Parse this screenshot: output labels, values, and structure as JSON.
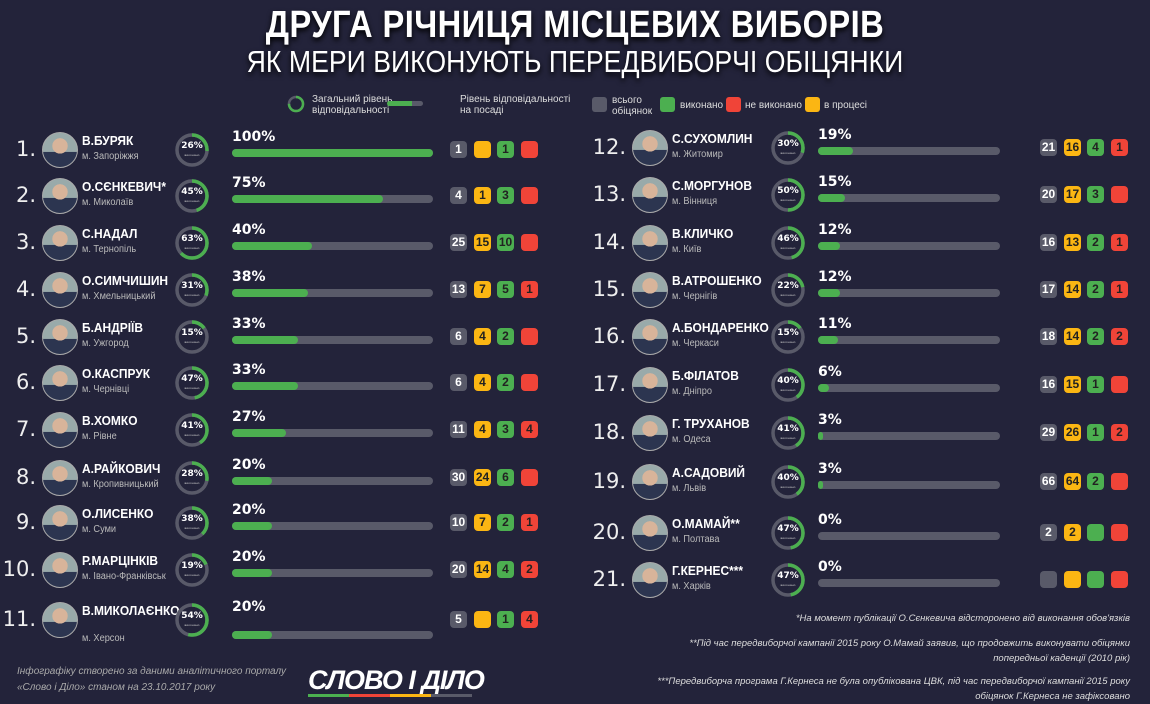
{
  "title": "ДРУГА РІЧНИЦЯ МІСЦЕВИХ ВИБОРІВ",
  "subtitle": "ЯК МЕРИ ВИКОНУЮТЬ  ПЕРЕДВИБОРЧІ ОБІЦЯНКИ",
  "legend": {
    "overall": "Загальний рівень відповідальності",
    "position": "Рівень відповідальності на посаді",
    "total": "всього обіцянок",
    "done": "виконано",
    "not_done": "не виконано",
    "in_progress": "в процесі"
  },
  "colors": {
    "background": "#23233a",
    "total": "#595a69",
    "done": "#4caf50",
    "not_done": "#f04438",
    "in_progress": "#fbb613"
  },
  "ring_caption": "виконано",
  "mayors": [
    {
      "rank": "1.",
      "name": "В.БУРЯК",
      "city": "м. Запоріжжя",
      "overall": "26%",
      "position": "100%",
      "total": "1",
      "in_progress": "",
      "done": "1",
      "not_done": ""
    },
    {
      "rank": "2.",
      "name": "О.СЄНКЕВИЧ*",
      "city": "м. Миколаїв",
      "overall": "45%",
      "position": "75%",
      "total": "4",
      "in_progress": "1",
      "done": "3",
      "not_done": ""
    },
    {
      "rank": "3.",
      "name": "С.НАДАЛ",
      "city": "м. Тернопіль",
      "overall": "63%",
      "position": "40%",
      "total": "25",
      "in_progress": "15",
      "done": "10",
      "not_done": ""
    },
    {
      "rank": "4.",
      "name": "О.СИМЧИШИН",
      "city": "м. Хмельницький",
      "overall": "31%",
      "position": "38%",
      "total": "13",
      "in_progress": "7",
      "done": "5",
      "not_done": "1"
    },
    {
      "rank": "5.",
      "name": "Б.АНДРІЇВ",
      "city": "м. Ужгород",
      "overall": "15%",
      "position": "33%",
      "total": "6",
      "in_progress": "4",
      "done": "2",
      "not_done": ""
    },
    {
      "rank": "6.",
      "name": "О.КАСПРУК",
      "city": "м. Чернівці",
      "overall": "47%",
      "position": "33%",
      "total": "6",
      "in_progress": "4",
      "done": "2",
      "not_done": ""
    },
    {
      "rank": "7.",
      "name": "В.ХОМКО",
      "city": "м. Рівне",
      "overall": "41%",
      "position": "27%",
      "total": "11",
      "in_progress": "4",
      "done": "3",
      "not_done": "4"
    },
    {
      "rank": "8.",
      "name": "А.РАЙКОВИЧ",
      "city": "м. Кропивницький",
      "overall": "28%",
      "position": "20%",
      "total": "30",
      "in_progress": "24",
      "done": "6",
      "not_done": ""
    },
    {
      "rank": "9.",
      "name": "О.ЛИСЕНКО",
      "city": "м. Суми",
      "overall": "38%",
      "position": "20%",
      "total": "10",
      "in_progress": "7",
      "done": "2",
      "not_done": "1"
    },
    {
      "rank": "10.",
      "name": "Р.МАРЦІНКІВ",
      "city": "м. Івано-Франківськ",
      "overall": "19%",
      "position": "20%",
      "total": "20",
      "in_progress": "14",
      "done": "4",
      "not_done": "2"
    },
    {
      "rank": "11.",
      "name": "В.МИКОЛАЄНКО",
      "city": "м. Херсон",
      "overall": "54%",
      "position": "20%",
      "total": "5",
      "in_progress": "",
      "done": "1",
      "not_done": "4"
    },
    {
      "rank": "12.",
      "name": "С.СУХОМЛИН",
      "city": "м. Житомир",
      "overall": "30%",
      "position": "19%",
      "total": "21",
      "in_progress": "16",
      "done": "4",
      "not_done": "1"
    },
    {
      "rank": "13.",
      "name": "С.МОРГУНОВ",
      "city": "м. Вінниця",
      "overall": "50%",
      "position": "15%",
      "total": "20",
      "in_progress": "17",
      "done": "3",
      "not_done": ""
    },
    {
      "rank": "14.",
      "name": "В.КЛИЧКО",
      "city": "м. Київ",
      "overall": "46%",
      "position": "12%",
      "total": "16",
      "in_progress": "13",
      "done": "2",
      "not_done": "1"
    },
    {
      "rank": "15.",
      "name": "В.АТРОШЕНКО",
      "city": "м. Чернігів",
      "overall": "22%",
      "position": "12%",
      "total": "17",
      "in_progress": "14",
      "done": "2",
      "not_done": "1"
    },
    {
      "rank": "16.",
      "name": "А.БОНДАРЕНКО",
      "city": "м. Черкаси",
      "overall": "15%",
      "position": "11%",
      "total": "18",
      "in_progress": "14",
      "done": "2",
      "not_done": "2"
    },
    {
      "rank": "17.",
      "name": "Б.ФІЛАТОВ",
      "city": "м. Дніпро",
      "overall": "40%",
      "position": "6%",
      "total": "16",
      "in_progress": "15",
      "done": "1",
      "not_done": ""
    },
    {
      "rank": "18.",
      "name": "Г. ТРУХАНОВ",
      "city": "м. Одеса",
      "overall": "41%",
      "position": "3%",
      "total": "29",
      "in_progress": "26",
      "done": "1",
      "not_done": "2"
    },
    {
      "rank": "19.",
      "name": "А.САДОВИЙ",
      "city": "м. Львів",
      "overall": "40%",
      "position": "3%",
      "total": "66",
      "in_progress": "64",
      "done": "2",
      "not_done": ""
    },
    {
      "rank": "20.",
      "name": "О.МАМАЙ**",
      "city": "м. Полтава",
      "overall": "47%",
      "position": "0%",
      "total": "2",
      "in_progress": "2",
      "done": "",
      "not_done": ""
    },
    {
      "rank": "21.",
      "name": "Г.КЕРНЕС***",
      "city": "м. Харків",
      "overall": "47%",
      "position": "0%",
      "total": "",
      "in_progress": "",
      "done": "",
      "not_done": ""
    }
  ],
  "footer": {
    "source_line1": "Інфографіку створено за даними аналітичного порталу",
    "source_line2": "«Слово і Діло» станом на 23.10.2017 року",
    "logo": "СЛОВО І ДІЛО"
  },
  "notes": {
    "n1": "*На момент публікації О.Сєнкевича відсторонено від виконання обов'язків",
    "n2a": "**Під час  передвиборчої кампанії 2015 року О.Мамай заявив, що продовжить виконувати  обіцянки",
    "n2b": "попередньої каденції (2010 рік)",
    "n3a": "***Передвиборча програма Г.Кернеса не була опублікована ЦВК, під час передвиборчої кампанії 2015 року",
    "n3b": "обіцянок Г.Кернеса не зафіксовано"
  }
}
